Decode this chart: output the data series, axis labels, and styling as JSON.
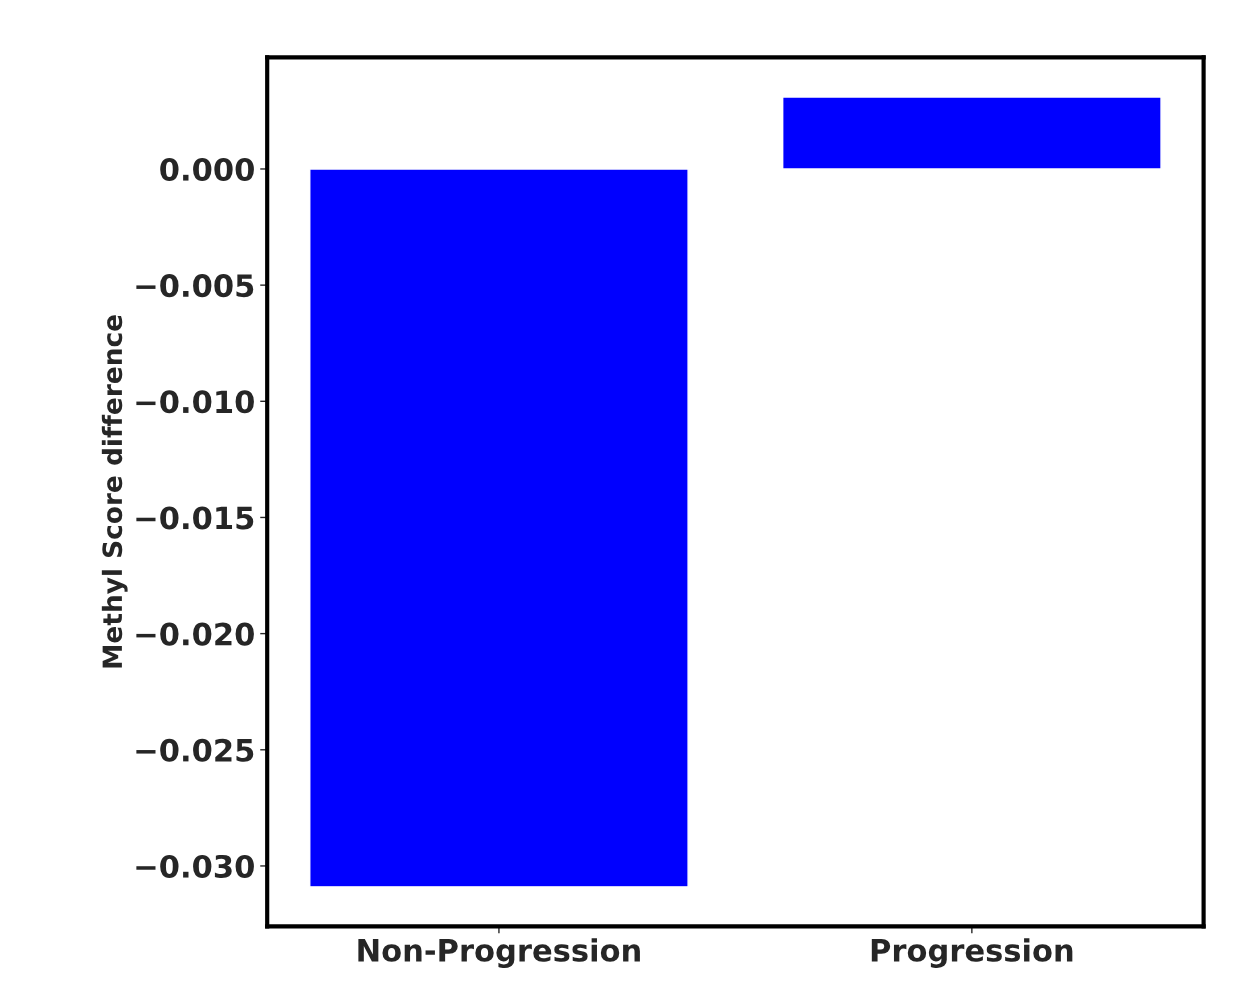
{
  "chart_data": {
    "type": "bar",
    "ylabel": "Methyl Score difference",
    "categories": [
      "Non-Progression",
      "Progression"
    ],
    "values": [
      -0.0309,
      0.0031
    ],
    "color": "#0000ff",
    "ylim": [
      -0.0326,
      0.0048
    ],
    "yticks": [
      {
        "value": -0.03,
        "label": "−0.030"
      },
      {
        "value": -0.025,
        "label": "−0.025"
      },
      {
        "value": -0.02,
        "label": "−0.020"
      },
      {
        "value": -0.015,
        "label": "−0.015"
      },
      {
        "value": -0.01,
        "label": "−0.010"
      },
      {
        "value": -0.005,
        "label": "−0.005"
      },
      {
        "value": 0.0,
        "label": "0.000"
      }
    ],
    "grid": false
  }
}
